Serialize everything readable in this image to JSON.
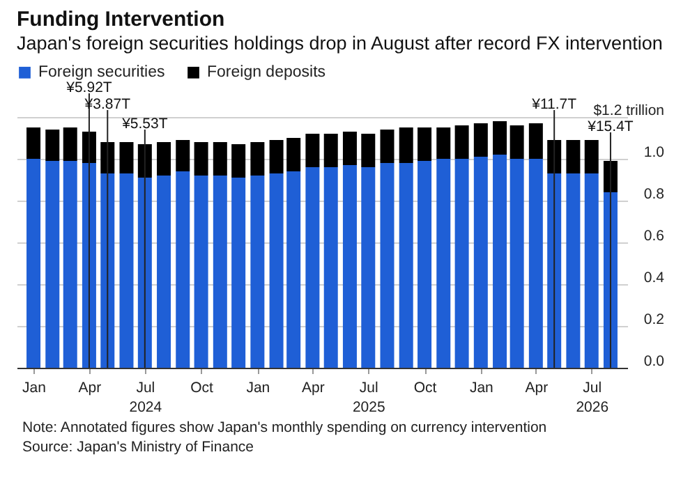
{
  "chart_data": {
    "type": "bar",
    "title": "Funding Intervention",
    "subtitle": "Japan's foreign securities holdings drop in August after record FX intervention",
    "x": [
      "2024-01",
      "2024-02",
      "2024-03",
      "2024-04",
      "2024-05",
      "2024-06",
      "2024-07",
      "2024-08",
      "2024-09",
      "2024-10",
      "2024-11",
      "2024-12",
      "2025-01",
      "2025-02",
      "2025-03",
      "2025-04",
      "2025-05",
      "2025-06",
      "2025-07",
      "2025-08",
      "2025-09",
      "2025-10",
      "2025-11",
      "2025-12",
      "2026-01",
      "2026-02",
      "2026-03",
      "2026-04",
      "2026-05",
      "2026-06",
      "2026-07",
      "2026-08"
    ],
    "xlim": [
      "2023-12-16",
      "2026-08-17"
    ],
    "xticks": [
      {
        "value": "2024-01",
        "label": "Jan"
      },
      {
        "value": "2024-04",
        "label": "Apr"
      },
      {
        "value": "2024-07",
        "label": "Jul\n2024"
      },
      {
        "value": "2024-10",
        "label": "Oct"
      },
      {
        "value": "2025-01",
        "label": "Jan"
      },
      {
        "value": "2025-04",
        "label": "Apr"
      },
      {
        "value": "2025-07",
        "label": "Jul\n2025"
      },
      {
        "value": "2025-10",
        "label": "Oct"
      },
      {
        "value": "2026-01",
        "label": "Jan"
      },
      {
        "value": "2026-04",
        "label": "Apr"
      },
      {
        "value": "2026-07",
        "label": "Jul\n2026"
      }
    ],
    "stacked": true,
    "series": [
      {
        "name": "Foreign securities",
        "color": "#1f5fd6",
        "values": [
          1.0,
          0.99,
          0.99,
          0.98,
          0.93,
          0.93,
          0.91,
          0.92,
          0.94,
          0.92,
          0.92,
          0.91,
          0.92,
          0.93,
          0.94,
          0.96,
          0.96,
          0.97,
          0.96,
          0.98,
          0.98,
          0.99,
          1.0,
          1.0,
          1.01,
          1.02,
          1.0,
          1.0,
          0.93,
          0.93,
          0.93,
          0.84
        ]
      },
      {
        "name": "Foreign deposits",
        "color": "#000000",
        "values": [
          0.15,
          0.15,
          0.16,
          0.15,
          0.15,
          0.15,
          0.16,
          0.16,
          0.15,
          0.16,
          0.16,
          0.16,
          0.16,
          0.16,
          0.16,
          0.16,
          0.16,
          0.16,
          0.16,
          0.16,
          0.17,
          0.16,
          0.15,
          0.16,
          0.16,
          0.16,
          0.16,
          0.17,
          0.16,
          0.16,
          0.16,
          0.15
        ]
      }
    ],
    "ylim": [
      0,
      1.2
    ],
    "yticks": [
      {
        "value": 0,
        "label": "0.0"
      },
      {
        "value": 0.2,
        "label": "0.2"
      },
      {
        "value": 0.4,
        "label": "0.4"
      },
      {
        "value": 0.6,
        "label": "0.6"
      },
      {
        "value": 0.8,
        "label": "0.8"
      },
      {
        "value": 1,
        "label": "1.0"
      },
      {
        "value": 1.2,
        "label": "$1.2 trillion"
      }
    ],
    "grid": "y",
    "legend": "top left",
    "ref_lines": [
      {
        "axis": "x",
        "value": "2024-04",
        "label": "¥5.92T"
      },
      {
        "axis": "x",
        "value": "2024-05",
        "label": "¥3.87T"
      },
      {
        "axis": "x",
        "value": "2024-07",
        "label": "¥5.53T"
      },
      {
        "axis": "x",
        "value": "2026-05",
        "label": "¥11.7T"
      },
      {
        "axis": "x",
        "value": "2026-08",
        "label": "¥15.4T"
      }
    ],
    "annotations": [
      "Note: Annotated figures show Japan's monthly spending on currency intervention",
      "Source: Japan's Ministry of Finance"
    ]
  }
}
